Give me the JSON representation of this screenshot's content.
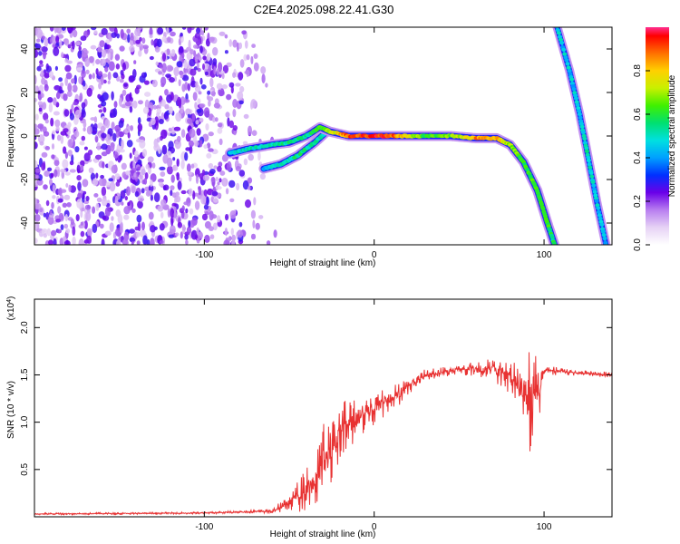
{
  "title": "C2E4.2025.098.22.41.G30",
  "colors": {
    "snr_line": "#e83232",
    "noise": "#7a1fe8",
    "frame": "#000000"
  },
  "chart_data": [
    {
      "type": "heatmap",
      "xlabel": "Height of straight line (km)",
      "ylabel": "Frequency (Hz)",
      "xlim": [
        -200,
        140
      ],
      "ylim": [
        -50,
        50
      ],
      "xticks": [
        {
          "v": -100,
          "label": "-100"
        },
        {
          "v": 0,
          "label": "0"
        },
        {
          "v": 100,
          "label": "100"
        }
      ],
      "yticks": [
        {
          "v": -40,
          "label": "-40"
        },
        {
          "v": -20,
          "label": "-20"
        },
        {
          "v": 0,
          "label": "0"
        },
        {
          "v": 20,
          "label": "20"
        },
        {
          "v": 40,
          "label": "40"
        }
      ],
      "colorbar": {
        "label": "Normalized spectral amplitude",
        "range": [
          0,
          1
        ],
        "ticks": [
          {
            "v": 0,
            "label": "0.0"
          },
          {
            "v": 0.2,
            "label": "0.2"
          },
          {
            "v": 0.4,
            "label": "0.4"
          },
          {
            "v": 0.6,
            "label": "0.6"
          },
          {
            "v": 0.8,
            "label": "0.8"
          }
        ],
        "stops": [
          [
            0.0,
            "#ffffff"
          ],
          [
            0.08,
            "#e6d2f5"
          ],
          [
            0.16,
            "#b87ef0"
          ],
          [
            0.24,
            "#6a00e8"
          ],
          [
            0.32,
            "#0030ff"
          ],
          [
            0.4,
            "#00a0ff"
          ],
          [
            0.48,
            "#00e0e0"
          ],
          [
            0.56,
            "#00e070"
          ],
          [
            0.64,
            "#40f000"
          ],
          [
            0.72,
            "#c8f000"
          ],
          [
            0.8,
            "#ffd000"
          ],
          [
            0.88,
            "#ff7000"
          ],
          [
            0.96,
            "#ff0000"
          ],
          [
            1.0,
            "#ff3090"
          ]
        ]
      },
      "noise_region": [
        -200,
        -70
      ],
      "main_track": [
        {
          "x": -85,
          "y": -8,
          "a": 0.45
        },
        {
          "x": -75,
          "y": -6,
          "a": 0.5
        },
        {
          "x": -60,
          "y": -4,
          "a": 0.5
        },
        {
          "x": -50,
          "y": -3,
          "a": 0.55
        },
        {
          "x": -40,
          "y": 0,
          "a": 0.55
        },
        {
          "x": -32,
          "y": 4,
          "a": 0.6
        },
        {
          "x": -26,
          "y": 2,
          "a": 0.7
        },
        {
          "x": -15,
          "y": 0,
          "a": 0.9
        },
        {
          "x": 0,
          "y": 0,
          "a": 0.95
        },
        {
          "x": 10,
          "y": 0,
          "a": 0.9
        },
        {
          "x": 20,
          "y": 0,
          "a": 0.75
        },
        {
          "x": 30,
          "y": 0,
          "a": 0.6
        },
        {
          "x": 45,
          "y": 0,
          "a": 0.65
        },
        {
          "x": 60,
          "y": -1,
          "a": 0.85
        },
        {
          "x": 72,
          "y": -1,
          "a": 0.85
        },
        {
          "x": 80,
          "y": -4,
          "a": 0.7
        },
        {
          "x": 88,
          "y": -12,
          "a": 0.6
        },
        {
          "x": 96,
          "y": -25,
          "a": 0.65
        },
        {
          "x": 102,
          "y": -40,
          "a": 0.6
        },
        {
          "x": 107,
          "y": -52,
          "a": 0.55
        }
      ],
      "lower_track": [
        {
          "x": -65,
          "y": -15,
          "a": 0.45
        },
        {
          "x": -55,
          "y": -13,
          "a": 0.5
        },
        {
          "x": -45,
          "y": -9,
          "a": 0.55
        },
        {
          "x": -35,
          "y": -3,
          "a": 0.55
        },
        {
          "x": -28,
          "y": 2,
          "a": 0.5
        }
      ],
      "steep_track": [
        {
          "x": 107,
          "y": 52,
          "a": 0.45
        },
        {
          "x": 115,
          "y": 30,
          "a": 0.45
        },
        {
          "x": 121,
          "y": 10,
          "a": 0.45
        },
        {
          "x": 126,
          "y": -10,
          "a": 0.5
        },
        {
          "x": 131,
          "y": -30,
          "a": 0.45
        },
        {
          "x": 137,
          "y": -52,
          "a": 0.45
        }
      ]
    },
    {
      "type": "line",
      "xlabel": "Height of straight line (km)",
      "ylabel": "SNR (10 * v/v)",
      "scale_label": "(x10",
      "scale_exp": "4",
      "scale_close": ")",
      "xlim": [
        -200,
        140
      ],
      "ylim": [
        0,
        2.3
      ],
      "xticks": [
        {
          "v": -100,
          "label": "-100"
        },
        {
          "v": 0,
          "label": "0"
        },
        {
          "v": 100,
          "label": "100"
        }
      ],
      "yticks": [
        {
          "v": 0.5,
          "label": "0.5"
        },
        {
          "v": 1.0,
          "label": "1.0"
        },
        {
          "v": 1.5,
          "label": "1.5"
        },
        {
          "v": 2.0,
          "label": "2.0"
        }
      ],
      "series": [
        {
          "envelope": [
            {
              "x": -200,
              "base": 0.03,
              "amp": 0.01
            },
            {
              "x": -100,
              "base": 0.04,
              "amp": 0.01
            },
            {
              "x": -60,
              "base": 0.06,
              "amp": 0.02
            },
            {
              "x": -50,
              "base": 0.15,
              "amp": 0.1
            },
            {
              "x": -35,
              "base": 0.35,
              "amp": 0.3
            },
            {
              "x": -30,
              "base": 0.6,
              "amp": 0.4
            },
            {
              "x": -20,
              "base": 0.9,
              "amp": 0.35
            },
            {
              "x": -5,
              "base": 1.1,
              "amp": 0.2
            },
            {
              "x": 15,
              "base": 1.3,
              "amp": 0.12
            },
            {
              "x": 30,
              "base": 1.5,
              "amp": 0.06
            },
            {
              "x": 50,
              "base": 1.56,
              "amp": 0.05
            },
            {
              "x": 70,
              "base": 1.56,
              "amp": 0.12
            },
            {
              "x": 82,
              "base": 1.45,
              "amp": 0.2
            },
            {
              "x": 90,
              "base": 1.3,
              "amp": 0.45
            },
            {
              "x": 93,
              "base": 1.2,
              "amp": 0.7
            },
            {
              "x": 97,
              "base": 1.3,
              "amp": 0.3
            },
            {
              "x": 100,
              "base": 1.55,
              "amp": 0.05
            },
            {
              "x": 120,
              "base": 1.52,
              "amp": 0.03
            },
            {
              "x": 140,
              "base": 1.5,
              "amp": 0.03
            }
          ]
        }
      ]
    }
  ]
}
